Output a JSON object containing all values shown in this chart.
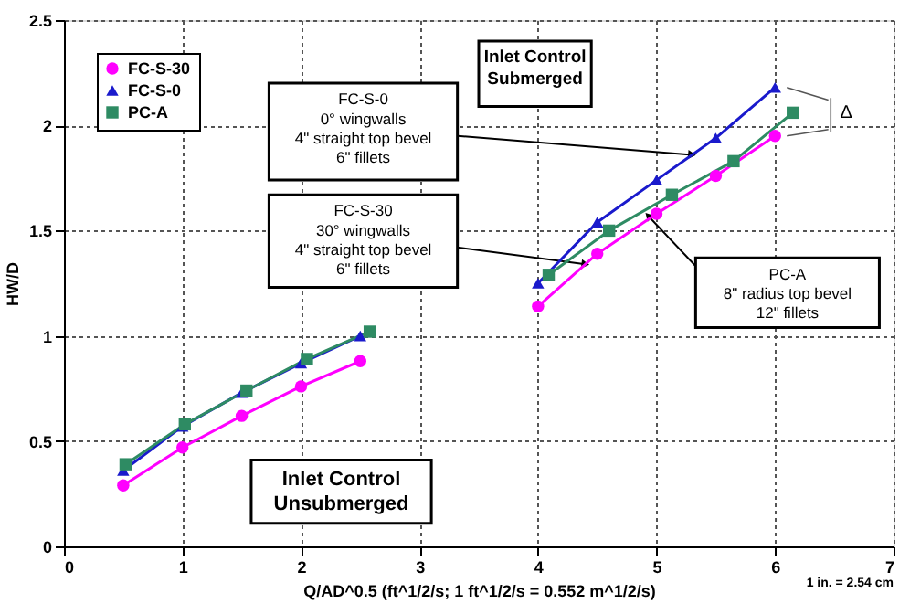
{
  "chart_data": {
    "type": "line",
    "xlabel": "Q/AD^0.5 (ft^1/2/s; 1 ft^1/2/s = 0.552 m^1/2/s)",
    "ylabel": "HW/D",
    "xlim": [
      0,
      7
    ],
    "xticks": [
      0,
      1,
      2,
      3,
      4,
      5,
      6,
      7
    ],
    "ylim": [
      0,
      2.5
    ],
    "yticks": [
      0,
      0.5,
      1,
      1.5,
      2,
      2.5
    ],
    "grid": true,
    "legend": "top left",
    "series": [
      {
        "name": "FC-S-30",
        "color": "#ff00ff",
        "marker": "circle",
        "x": [
          0.5,
          1,
          1.5,
          2,
          2.5,
          3.25,
          4,
          4.5,
          5,
          5.5,
          6
        ],
        "values": [
          0.29,
          0.47,
          0.62,
          0.76,
          0.88,
          null,
          1.14,
          1.39,
          1.58,
          1.76,
          1.95
        ]
      },
      {
        "name": "FC-S-0",
        "color": "#1a1acc",
        "marker": "triangle",
        "x": [
          0.5,
          1,
          1.5,
          2,
          2.5,
          3.25,
          4,
          4.5,
          5,
          5.5,
          6
        ],
        "values": [
          0.36,
          0.57,
          0.73,
          0.87,
          1.0,
          null,
          1.25,
          1.54,
          1.74,
          1.94,
          2.18
        ]
      },
      {
        "name": "PC-A",
        "color": "#2e8b63",
        "marker": "square",
        "x": [
          0.52,
          1.02,
          1.54,
          2.05,
          2.58,
          3.3,
          4.09,
          4.6,
          5.13,
          5.65,
          6.15
        ],
        "values": [
          0.39,
          0.58,
          0.74,
          0.89,
          1.02,
          null,
          1.29,
          1.5,
          1.67,
          1.83,
          2.06
        ]
      }
    ],
    "annotations": [
      "FC-S-0\n0°  wingwalls\n4\" straight top bevel\n6\" fillets",
      "FC-S-30\n30° wingwalls\n4\" straight top bevel\n6\" fillets",
      {
        "text": "PC-A\n8\" radius top bevel\n12\" fillets",
        "x": 4.93,
        "y": 1.57
      },
      "Inlet Control\nSubmerged",
      "Inlet Control\nUnsubmerged",
      "Δ",
      "1 in. = 2.54 cm"
    ]
  }
}
